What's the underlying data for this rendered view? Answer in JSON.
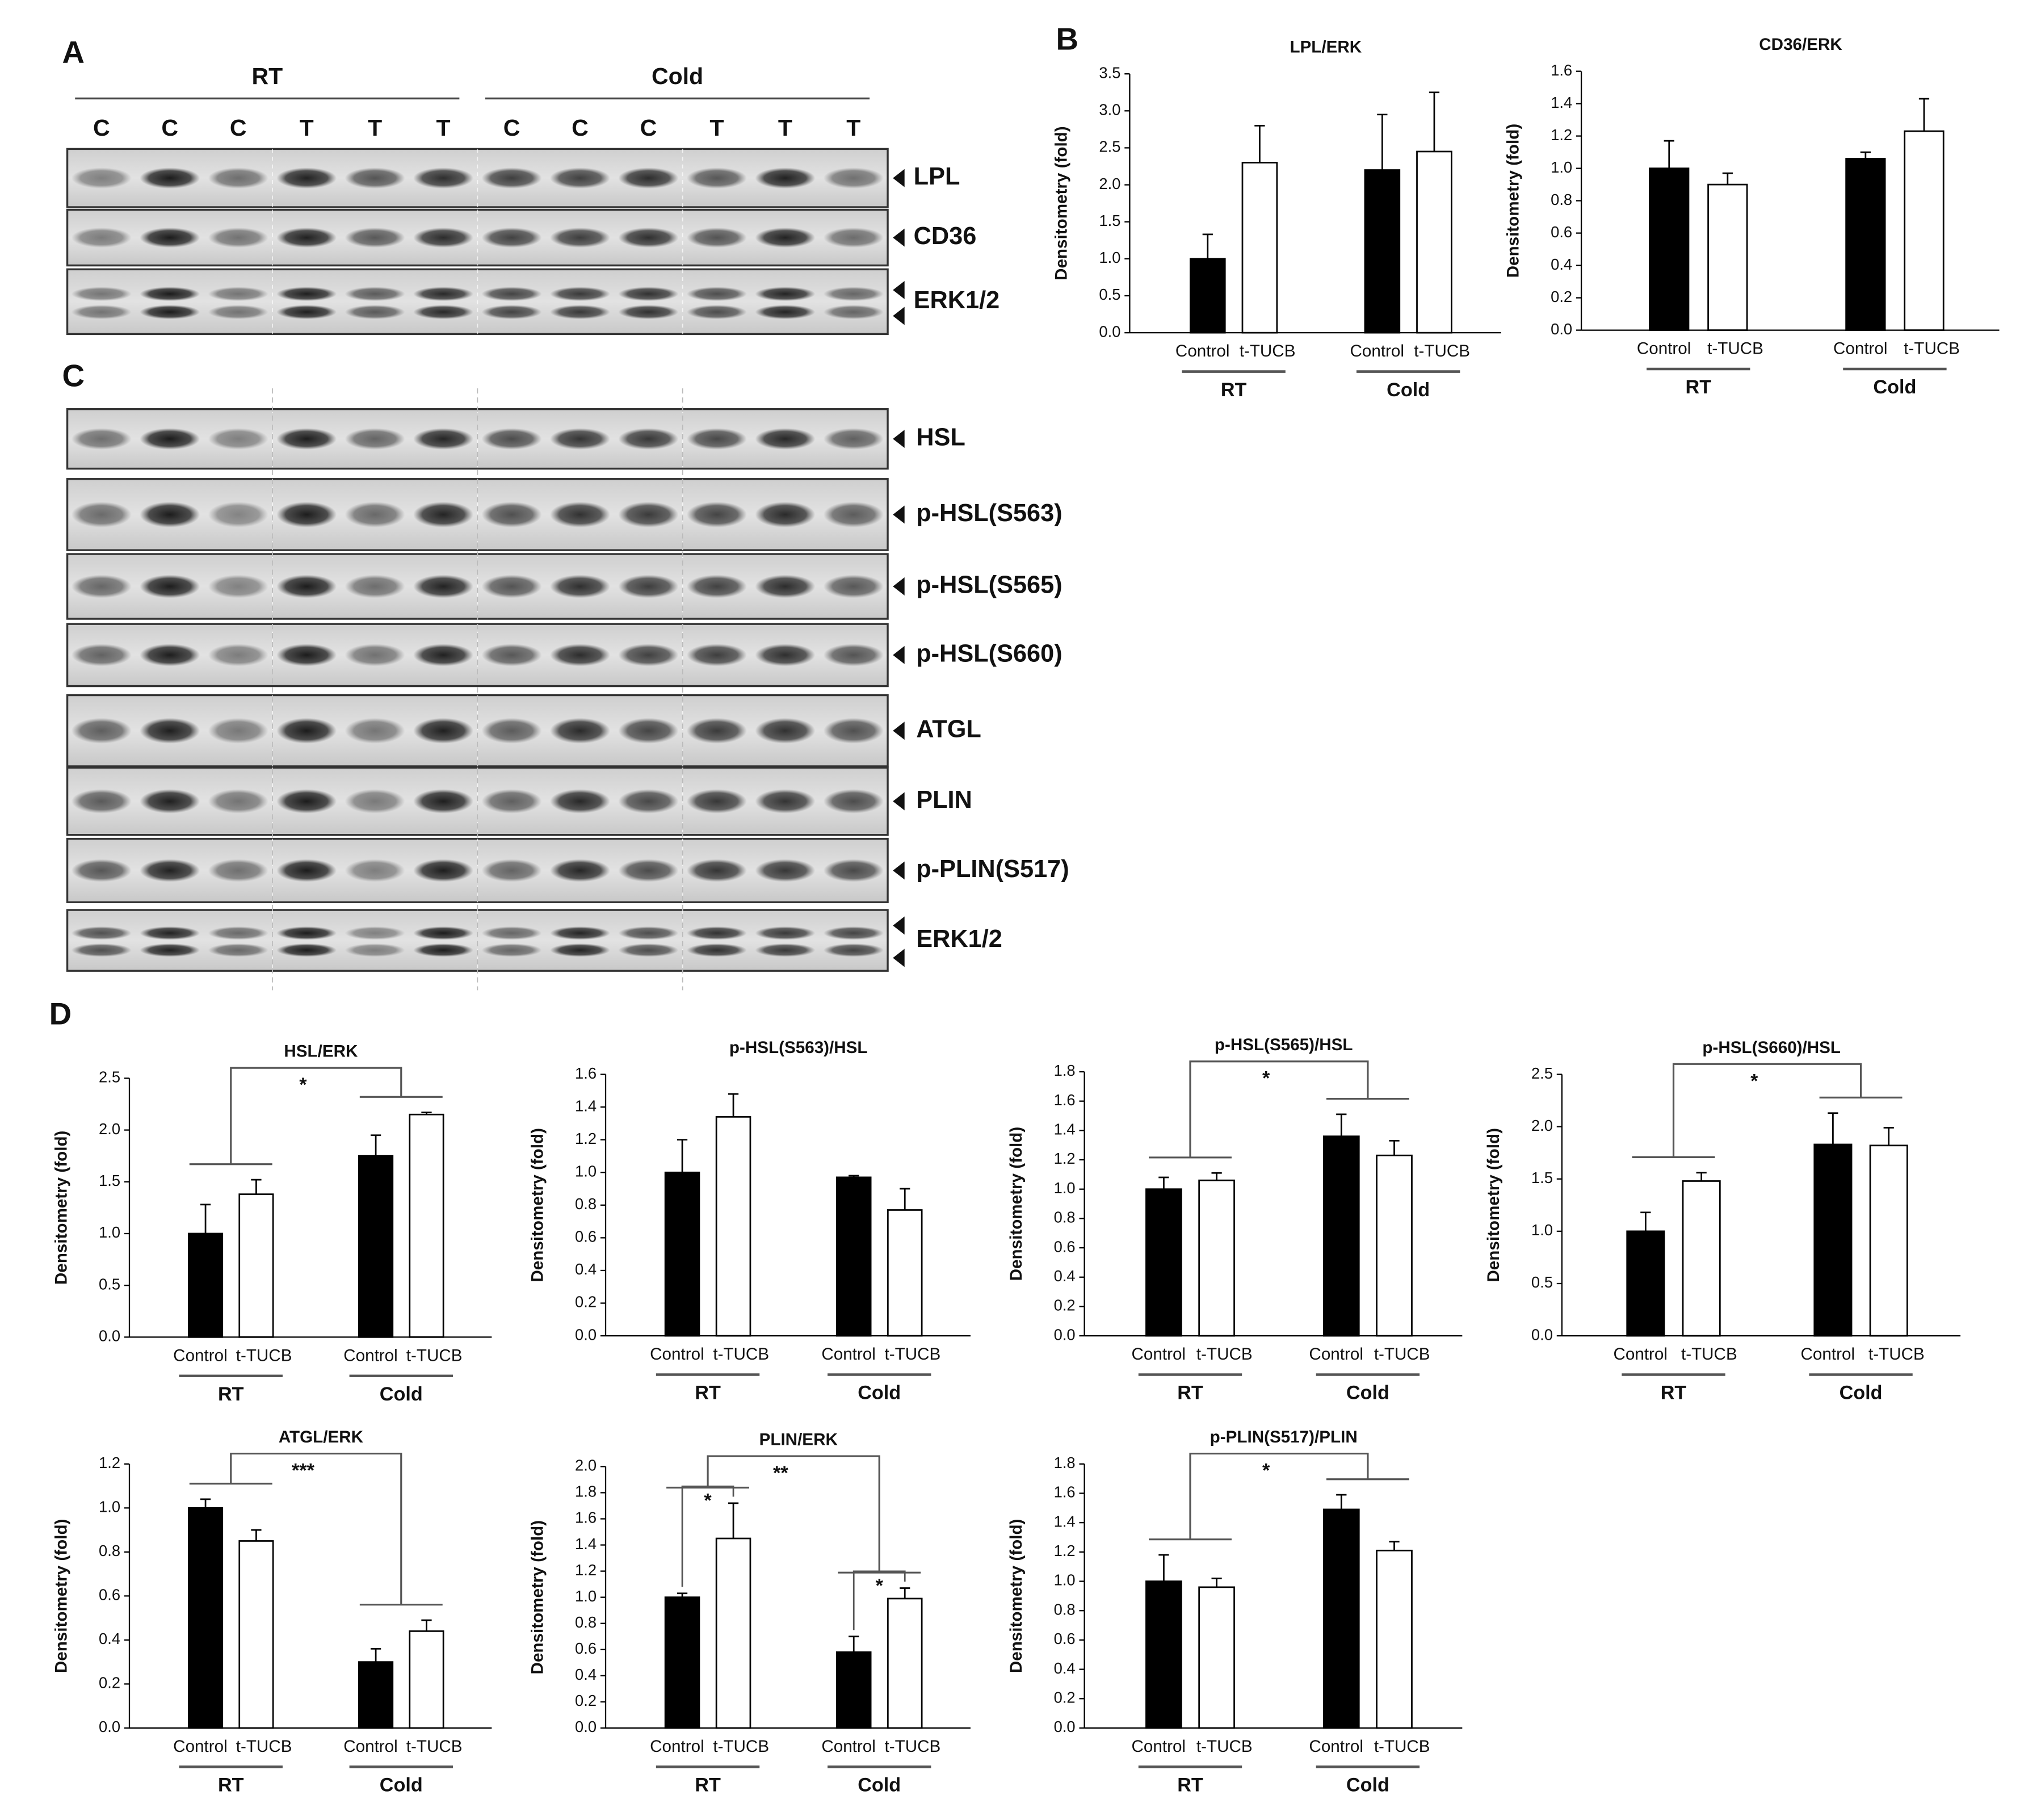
{
  "panels": [
    "A",
    "B",
    "C",
    "D"
  ],
  "blot_a": {
    "groups": [
      "RT",
      "Cold"
    ],
    "lanes": [
      "C",
      "C",
      "C",
      "T",
      "T",
      "T",
      "C",
      "C",
      "C",
      "T",
      "T",
      "T"
    ],
    "bands": [
      "LPL",
      "CD36",
      "ERK1/2"
    ]
  },
  "blot_c": {
    "bands": [
      "HSL",
      "p-HSL(S563)",
      "p-HSL(S565)",
      "p-HSL(S660)",
      "ATGL",
      "PLIN",
      "p-PLIN(S517)",
      "ERK1/2"
    ]
  },
  "chart_data": [
    {
      "type": "bar",
      "title": "LPL/ERK",
      "ylabel": "Densitometry (fold)",
      "categories": [
        "Control",
        "t-TUCB",
        "Control",
        "t-TUCB"
      ],
      "groups": [
        "RT",
        "Cold"
      ],
      "values": [
        1.0,
        2.3,
        2.2,
        2.45
      ],
      "errors": [
        0.33,
        0.5,
        0.75,
        0.8
      ],
      "colors": [
        "#000000",
        "#ffffff",
        "#000000",
        "#ffffff"
      ],
      "ylim": [
        0,
        3.5
      ],
      "yticks": [
        {
          "value": 0,
          "label": "0.0"
        },
        {
          "value": 0.5,
          "label": "0.5"
        },
        {
          "value": 1,
          "label": "1.0"
        },
        {
          "value": 1.5,
          "label": "1.5"
        },
        {
          "value": 2,
          "label": "2.0"
        },
        {
          "value": 2.5,
          "label": "2.5"
        },
        {
          "value": 3,
          "label": "3.0"
        },
        {
          "value": 3.5,
          "label": "3.5"
        }
      ],
      "annotations": []
    },
    {
      "type": "bar",
      "title": "CD36/ERK",
      "ylabel": "Densitometry (fold)",
      "categories": [
        "Control",
        "t-TUCB",
        "Control",
        "t-TUCB"
      ],
      "groups": [
        "RT",
        "Cold"
      ],
      "values": [
        1.0,
        0.9,
        1.06,
        1.23
      ],
      "errors": [
        0.17,
        0.07,
        0.04,
        0.2
      ],
      "colors": [
        "#000000",
        "#ffffff",
        "#000000",
        "#ffffff"
      ],
      "ylim": [
        0,
        1.6
      ],
      "yticks": [
        {
          "value": 0,
          "label": "0.0"
        },
        {
          "value": 0.2,
          "label": "0.2"
        },
        {
          "value": 0.4,
          "label": "0.4"
        },
        {
          "value": 0.6,
          "label": "0.6"
        },
        {
          "value": 0.8,
          "label": "0.8"
        },
        {
          "value": 1,
          "label": "1.0"
        },
        {
          "value": 1.2,
          "label": "1.2"
        },
        {
          "value": 1.4,
          "label": "1.4"
        },
        {
          "value": 1.6,
          "label": "1.6"
        }
      ],
      "annotations": []
    },
    {
      "type": "bar",
      "title": "HSL/ERK",
      "ylabel": "Densitometry (fold)",
      "categories": [
        "Control",
        "t-TUCB",
        "Control",
        "t-TUCB"
      ],
      "groups": [
        "RT",
        "Cold"
      ],
      "values": [
        1.0,
        1.38,
        1.75,
        2.15
      ],
      "errors": [
        0.28,
        0.14,
        0.2,
        0.02
      ],
      "colors": [
        "#000000",
        "#ffffff",
        "#000000",
        "#ffffff"
      ],
      "ylim": [
        0,
        2.5
      ],
      "yticks": [
        {
          "value": 0,
          "label": "0.0"
        },
        {
          "value": 0.5,
          "label": "0.5"
        },
        {
          "value": 1,
          "label": "1.0"
        },
        {
          "value": 1.5,
          "label": "1.5"
        },
        {
          "value": 2,
          "label": "2.0"
        },
        {
          "value": 2.5,
          "label": "2.5"
        }
      ],
      "annotations": [
        "*"
      ]
    },
    {
      "type": "bar",
      "title": "p-HSL(S563)/HSL",
      "ylabel": "Densitometry (fold)",
      "categories": [
        "Control",
        "t-TUCB",
        "Control",
        "t-TUCB"
      ],
      "groups": [
        "RT",
        "Cold"
      ],
      "values": [
        1.0,
        1.34,
        0.97,
        0.77
      ],
      "errors": [
        0.2,
        0.14,
        0.01,
        0.13
      ],
      "colors": [
        "#000000",
        "#ffffff",
        "#000000",
        "#ffffff"
      ],
      "ylim": [
        0,
        1.6
      ],
      "yticks": [
        {
          "value": 0,
          "label": "0.0"
        },
        {
          "value": 0.2,
          "label": "0.2"
        },
        {
          "value": 0.4,
          "label": "0.4"
        },
        {
          "value": 0.6,
          "label": "0.6"
        },
        {
          "value": 0.8,
          "label": "0.8"
        },
        {
          "value": 1,
          "label": "1.0"
        },
        {
          "value": 1.2,
          "label": "1.2"
        },
        {
          "value": 1.4,
          "label": "1.4"
        },
        {
          "value": 1.6,
          "label": "1.6"
        }
      ],
      "annotations": []
    },
    {
      "type": "bar",
      "title": "p-HSL(S565)/HSL",
      "ylabel": "Densitometry (fold)",
      "categories": [
        "Control",
        "t-TUCB",
        "Control",
        "t-TUCB"
      ],
      "groups": [
        "RT",
        "Cold"
      ],
      "values": [
        1.0,
        1.06,
        1.36,
        1.23
      ],
      "errors": [
        0.08,
        0.05,
        0.15,
        0.1
      ],
      "colors": [
        "#000000",
        "#ffffff",
        "#000000",
        "#ffffff"
      ],
      "ylim": [
        0,
        1.8
      ],
      "yticks": [
        {
          "value": 0,
          "label": "0.0"
        },
        {
          "value": 0.2,
          "label": "0.2"
        },
        {
          "value": 0.4,
          "label": "0.4"
        },
        {
          "value": 0.6,
          "label": "0.6"
        },
        {
          "value": 0.8,
          "label": "0.8"
        },
        {
          "value": 1,
          "label": "1.0"
        },
        {
          "value": 1.2,
          "label": "1.2"
        },
        {
          "value": 1.4,
          "label": "1.4"
        },
        {
          "value": 1.6,
          "label": "1.6"
        },
        {
          "value": 1.8,
          "label": "1.8"
        }
      ],
      "annotations": [
        "*"
      ]
    },
    {
      "type": "bar",
      "title": "p-HSL(S660)/HSL",
      "ylabel": "Densitometry (fold)",
      "categories": [
        "Control",
        "t-TUCB",
        "Control",
        "t-TUCB"
      ],
      "groups": [
        "RT",
        "Cold"
      ],
      "values": [
        1.0,
        1.48,
        1.83,
        1.82
      ],
      "errors": [
        0.18,
        0.08,
        0.3,
        0.17
      ],
      "colors": [
        "#000000",
        "#ffffff",
        "#000000",
        "#ffffff"
      ],
      "ylim": [
        0,
        2.5
      ],
      "yticks": [
        {
          "value": 0,
          "label": "0.0"
        },
        {
          "value": 0.5,
          "label": "0.5"
        },
        {
          "value": 1,
          "label": "1.0"
        },
        {
          "value": 1.5,
          "label": "1.5"
        },
        {
          "value": 2,
          "label": "2.0"
        },
        {
          "value": 2.5,
          "label": "2.5"
        }
      ],
      "annotations": [
        "*"
      ]
    },
    {
      "type": "bar",
      "title": "ATGL/ERK",
      "ylabel": "Densitometry (fold)",
      "categories": [
        "Control",
        "t-TUCB",
        "Control",
        "t-TUCB"
      ],
      "groups": [
        "RT",
        "Cold"
      ],
      "values": [
        1.0,
        0.85,
        0.3,
        0.44
      ],
      "errors": [
        0.04,
        0.05,
        0.06,
        0.05
      ],
      "colors": [
        "#000000",
        "#ffffff",
        "#000000",
        "#ffffff"
      ],
      "ylim": [
        0,
        1.2
      ],
      "yticks": [
        {
          "value": 0,
          "label": "0.0"
        },
        {
          "value": 0.2,
          "label": "0.2"
        },
        {
          "value": 0.4,
          "label": "0.4"
        },
        {
          "value": 0.6,
          "label": "0.6"
        },
        {
          "value": 0.8,
          "label": "0.8"
        },
        {
          "value": 1,
          "label": "1.0"
        },
        {
          "value": 1.2,
          "label": "1.2"
        }
      ],
      "annotations": [
        "***"
      ]
    },
    {
      "type": "bar",
      "title": "PLIN/ERK",
      "ylabel": "Densitometry (fold)",
      "categories": [
        "Control",
        "t-TUCB",
        "Control",
        "t-TUCB"
      ],
      "groups": [
        "RT",
        "Cold"
      ],
      "values": [
        1.0,
        1.45,
        0.58,
        0.99
      ],
      "errors": [
        0.03,
        0.27,
        0.12,
        0.08
      ],
      "colors": [
        "#000000",
        "#ffffff",
        "#000000",
        "#ffffff"
      ],
      "ylim": [
        0,
        2.0
      ],
      "yticks": [
        {
          "value": 0,
          "label": "0.0"
        },
        {
          "value": 0.2,
          "label": "0.2"
        },
        {
          "value": 0.4,
          "label": "0.4"
        },
        {
          "value": 0.6,
          "label": "0.6"
        },
        {
          "value": 0.8,
          "label": "0.8"
        },
        {
          "value": 1,
          "label": "1.0"
        },
        {
          "value": 1.2,
          "label": "1.2"
        },
        {
          "value": 1.4,
          "label": "1.4"
        },
        {
          "value": 1.6,
          "label": "1.6"
        },
        {
          "value": 1.8,
          "label": "1.8"
        },
        {
          "value": 2,
          "label": "2.0"
        }
      ],
      "annotations": [
        "**",
        "*",
        "*"
      ]
    },
    {
      "type": "bar",
      "title": "p-PLIN(S517)/PLIN",
      "ylabel": "Densitometry (fold)",
      "categories": [
        "Control",
        "t-TUCB",
        "Control",
        "t-TUCB"
      ],
      "groups": [
        "RT",
        "Cold"
      ],
      "values": [
        1.0,
        0.96,
        1.49,
        1.21
      ],
      "errors": [
        0.18,
        0.06,
        0.1,
        0.06
      ],
      "colors": [
        "#000000",
        "#ffffff",
        "#000000",
        "#ffffff"
      ],
      "ylim": [
        0,
        1.8
      ],
      "yticks": [
        {
          "value": 0,
          "label": "0.0"
        },
        {
          "value": 0.2,
          "label": "0.2"
        },
        {
          "value": 0.4,
          "label": "0.4"
        },
        {
          "value": 0.6,
          "label": "0.6"
        },
        {
          "value": 0.8,
          "label": "0.8"
        },
        {
          "value": 1,
          "label": "1.0"
        },
        {
          "value": 1.2,
          "label": "1.2"
        },
        {
          "value": 1.4,
          "label": "1.4"
        },
        {
          "value": 1.6,
          "label": "1.6"
        },
        {
          "value": 1.8,
          "label": "1.8"
        }
      ],
      "annotations": [
        "*"
      ]
    }
  ]
}
